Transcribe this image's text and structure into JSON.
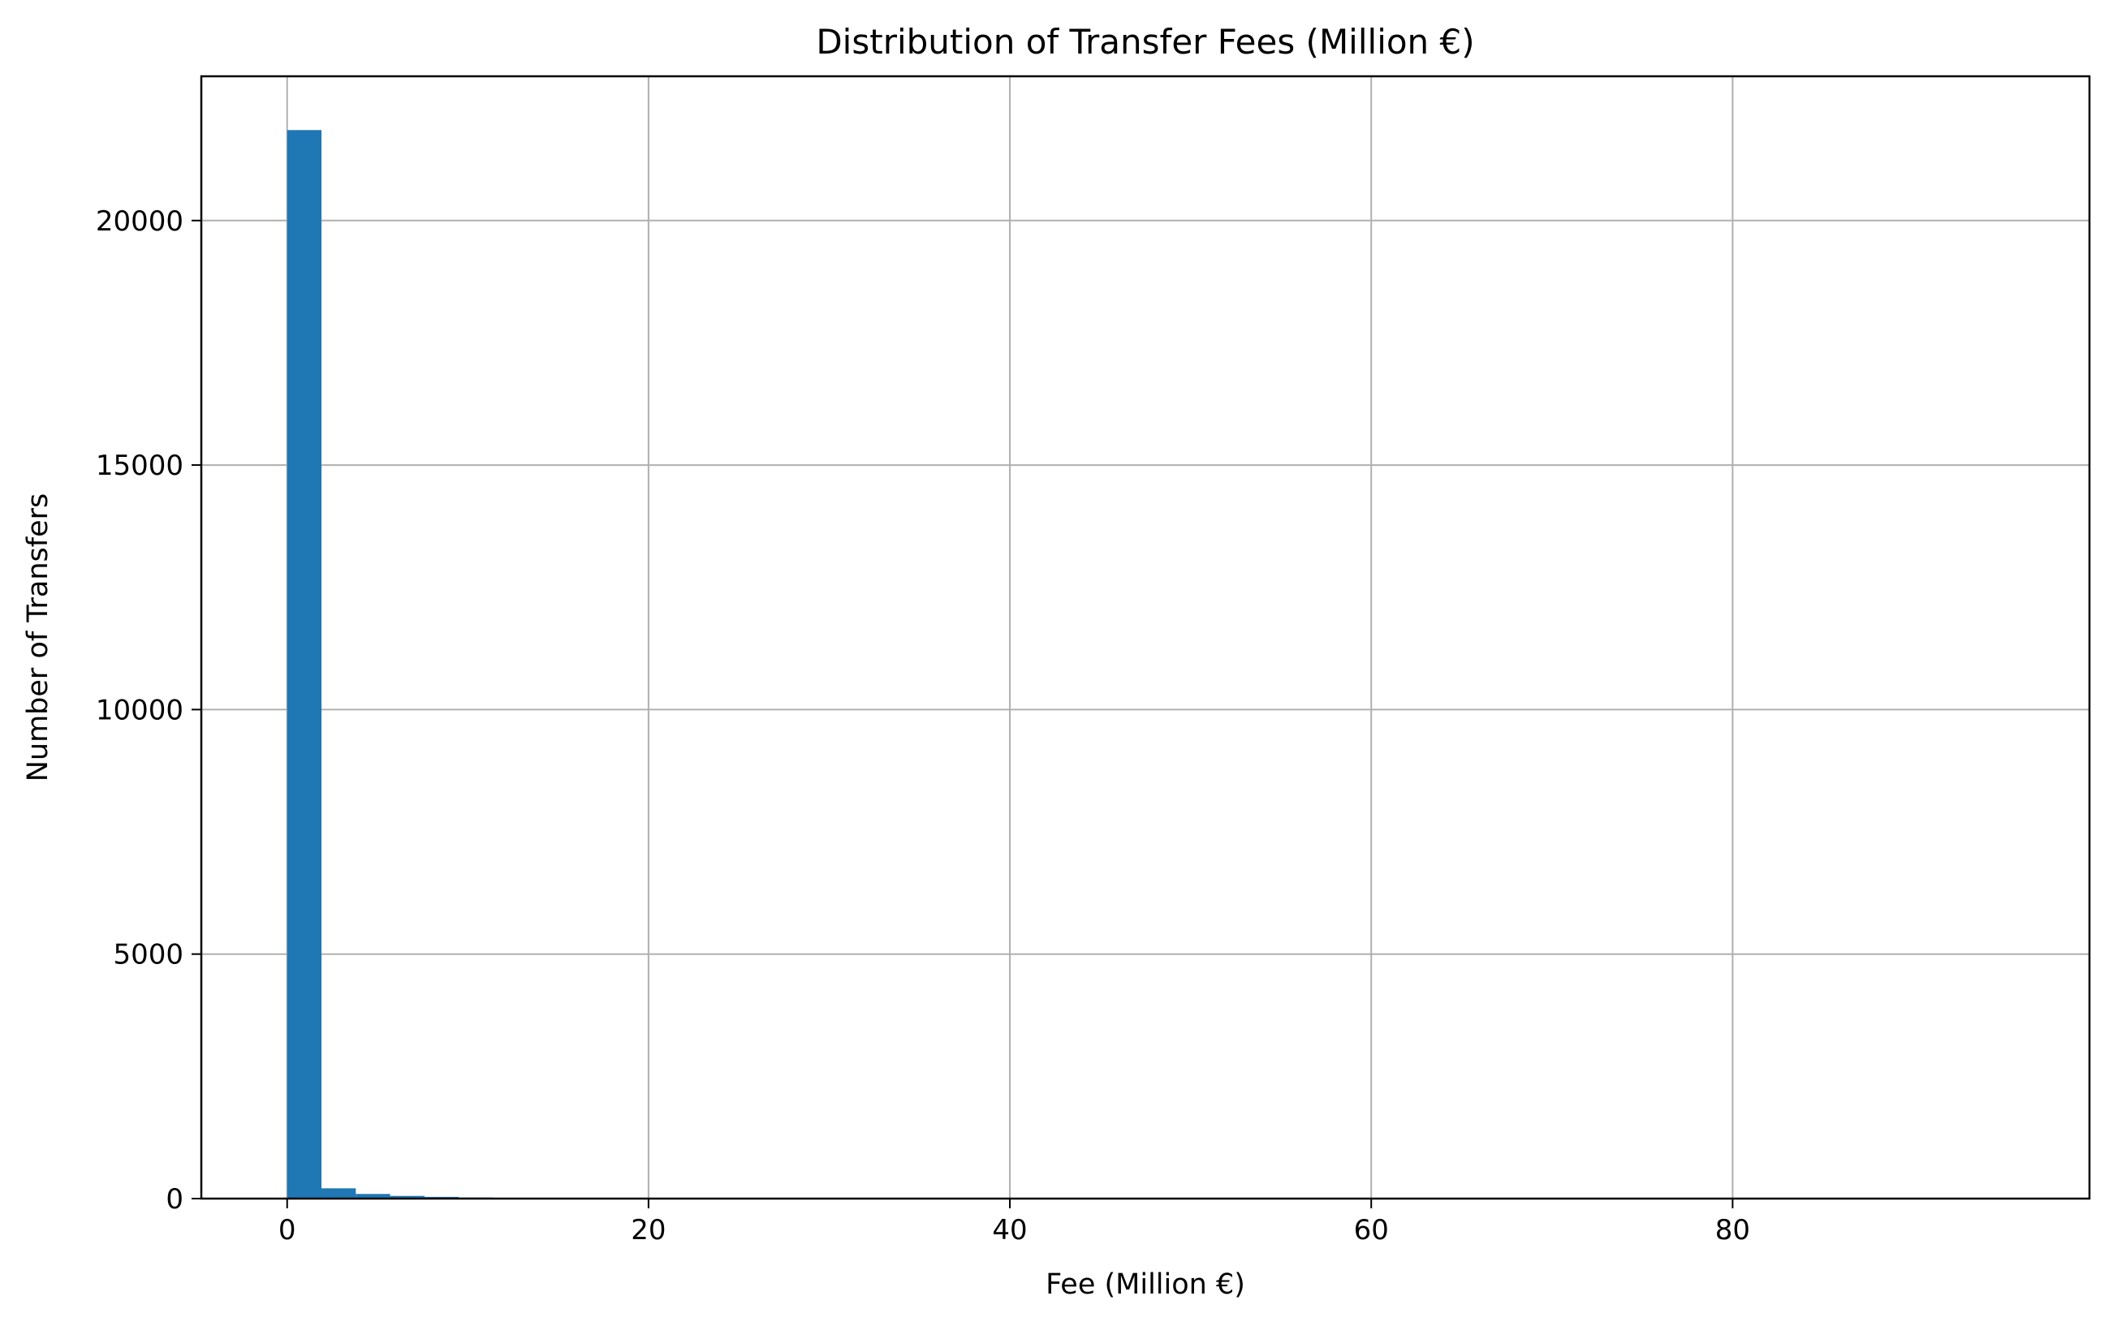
{
  "chart_data": {
    "type": "bar",
    "title": "Distribution of Transfer Fees (Million €)",
    "xlabel": "Fee (Million €)",
    "ylabel": "Number of Transfers",
    "xlim": [
      -4.75,
      99.75
    ],
    "ylim": [
      0,
      22950
    ],
    "x_ticks": [
      0,
      20,
      40,
      60,
      80
    ],
    "y_ticks": [
      0,
      5000,
      10000,
      15000,
      20000
    ],
    "grid": true,
    "bar_color": "#1f77b4",
    "bin_width": 1.9,
    "bins": [
      {
        "x0": 0.0,
        "count": 21850
      },
      {
        "x0": 1.9,
        "count": 210
      },
      {
        "x0": 3.8,
        "count": 95
      },
      {
        "x0": 5.7,
        "count": 55
      },
      {
        "x0": 7.6,
        "count": 35
      },
      {
        "x0": 9.5,
        "count": 22
      },
      {
        "x0": 11.4,
        "count": 14
      },
      {
        "x0": 13.3,
        "count": 10
      },
      {
        "x0": 15.2,
        "count": 8
      },
      {
        "x0": 17.1,
        "count": 6
      },
      {
        "x0": 19.0,
        "count": 4
      },
      {
        "x0": 20.9,
        "count": 3
      },
      {
        "x0": 22.8,
        "count": 3
      },
      {
        "x0": 24.7,
        "count": 2
      },
      {
        "x0": 26.6,
        "count": 2
      },
      {
        "x0": 28.5,
        "count": 1
      },
      {
        "x0": 30.4,
        "count": 1
      },
      {
        "x0": 32.3,
        "count": 1
      },
      {
        "x0": 34.2,
        "count": 1
      },
      {
        "x0": 38.0,
        "count": 1
      },
      {
        "x0": 41.8,
        "count": 1
      },
      {
        "x0": 45.6,
        "count": 1
      },
      {
        "x0": 49.4,
        "count": 1
      },
      {
        "x0": 55.1,
        "count": 1
      },
      {
        "x0": 62.7,
        "count": 1
      },
      {
        "x0": 70.3,
        "count": 1
      },
      {
        "x0": 93.1,
        "count": 1
      }
    ]
  }
}
